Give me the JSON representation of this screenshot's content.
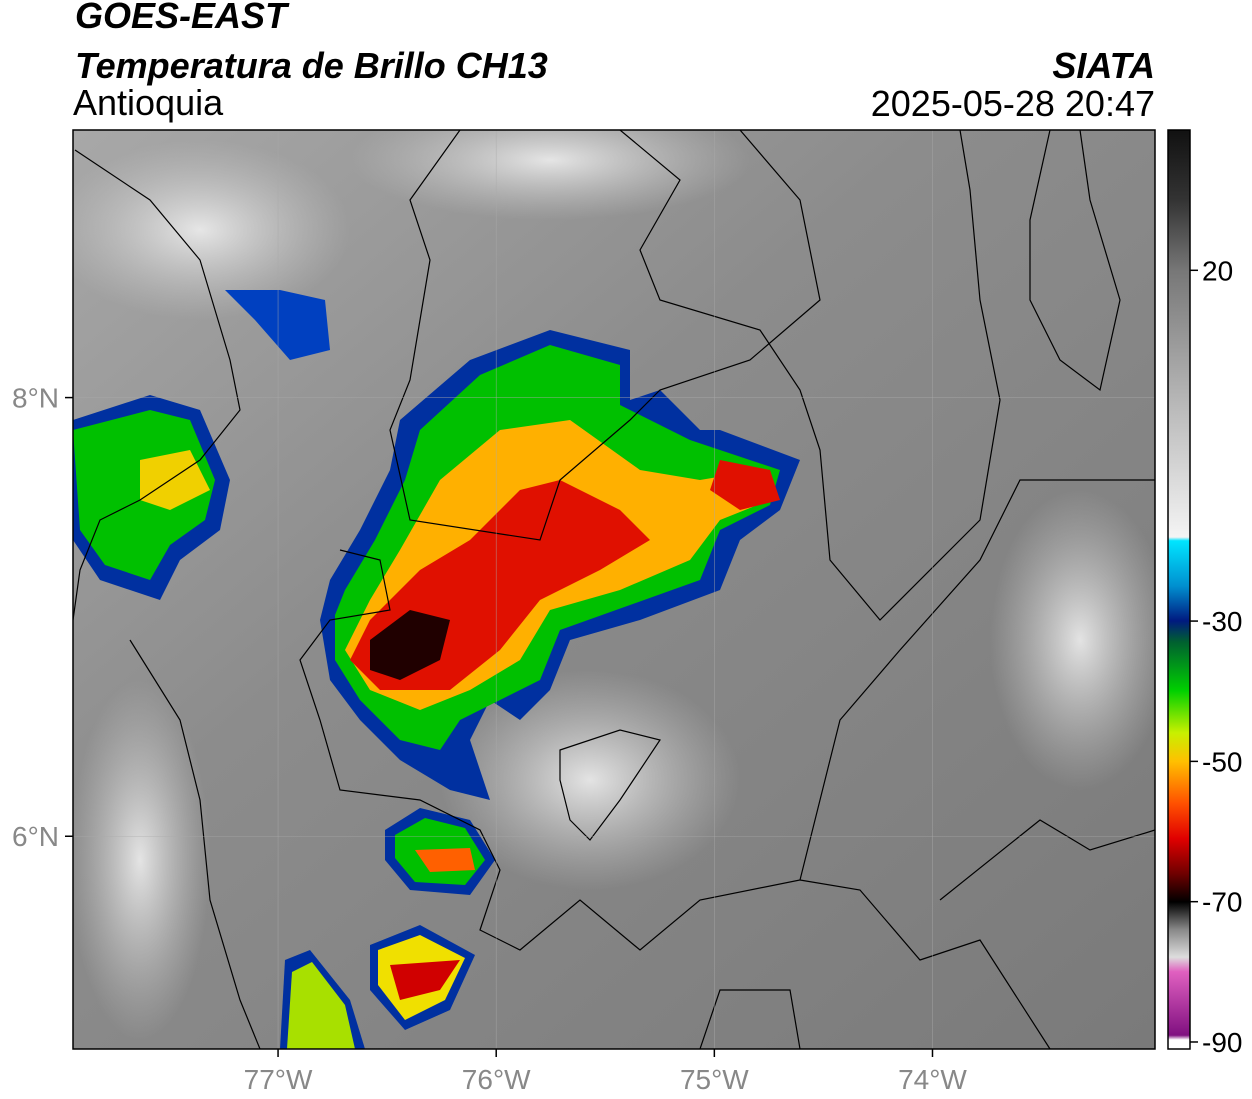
{
  "header": {
    "title": "GOES-EAST",
    "subtitle": "Temperatura de Brillo CH13",
    "region": "Antioquia",
    "source": "SIATA",
    "datetime": "2025-05-28 20:47"
  },
  "map": {
    "xlim": [
      -77.94,
      -72.98
    ],
    "ylim": [
      5.03,
      9.22
    ],
    "xticks": [
      {
        "value": -77,
        "label": "77°W"
      },
      {
        "value": -76,
        "label": "76°W"
      },
      {
        "value": -75,
        "label": "75°W"
      },
      {
        "value": -74,
        "label": "74°W"
      }
    ],
    "yticks": [
      {
        "value": 6,
        "label": "6°N"
      },
      {
        "value": 8,
        "label": "8°N"
      }
    ],
    "grid": true
  },
  "colorbar": {
    "clim": [
      -91,
      40
    ],
    "ticks": [
      -90,
      -70,
      -50,
      -30,
      20
    ]
  }
}
